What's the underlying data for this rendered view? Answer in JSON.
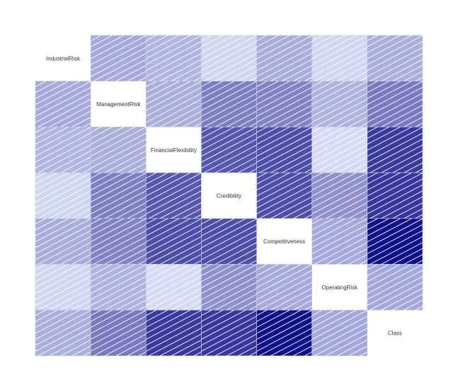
{
  "chart_data": {
    "type": "heatmap",
    "variables": [
      "IndustrialRisk",
      "ManagementRisk",
      "FinancialFlexibility",
      "Credibility",
      "Competitiveness",
      "OperatingRisk",
      "Class"
    ],
    "matrix": [
      [
        1.0,
        0.26,
        0.21,
        0.07,
        0.25,
        0.07,
        0.24
      ],
      [
        0.26,
        1.0,
        0.24,
        0.45,
        0.43,
        0.22,
        0.47
      ],
      [
        0.21,
        0.24,
        1.0,
        0.62,
        0.66,
        0.05,
        0.75
      ],
      [
        0.07,
        0.45,
        0.62,
        1.0,
        0.66,
        0.37,
        0.76
      ],
      [
        0.25,
        0.43,
        0.66,
        0.66,
        1.0,
        0.26,
        0.93
      ],
      [
        0.07,
        0.22,
        0.05,
        0.37,
        0.26,
        1.0,
        0.27
      ],
      [
        0.24,
        0.47,
        0.75,
        0.76,
        0.93,
        0.27,
        1.0
      ]
    ],
    "color_scale": {
      "low": "#e0e6f8",
      "high": "#000084"
    },
    "diagonal": "variable-names",
    "shading": "positive-diagonal-hatch"
  }
}
